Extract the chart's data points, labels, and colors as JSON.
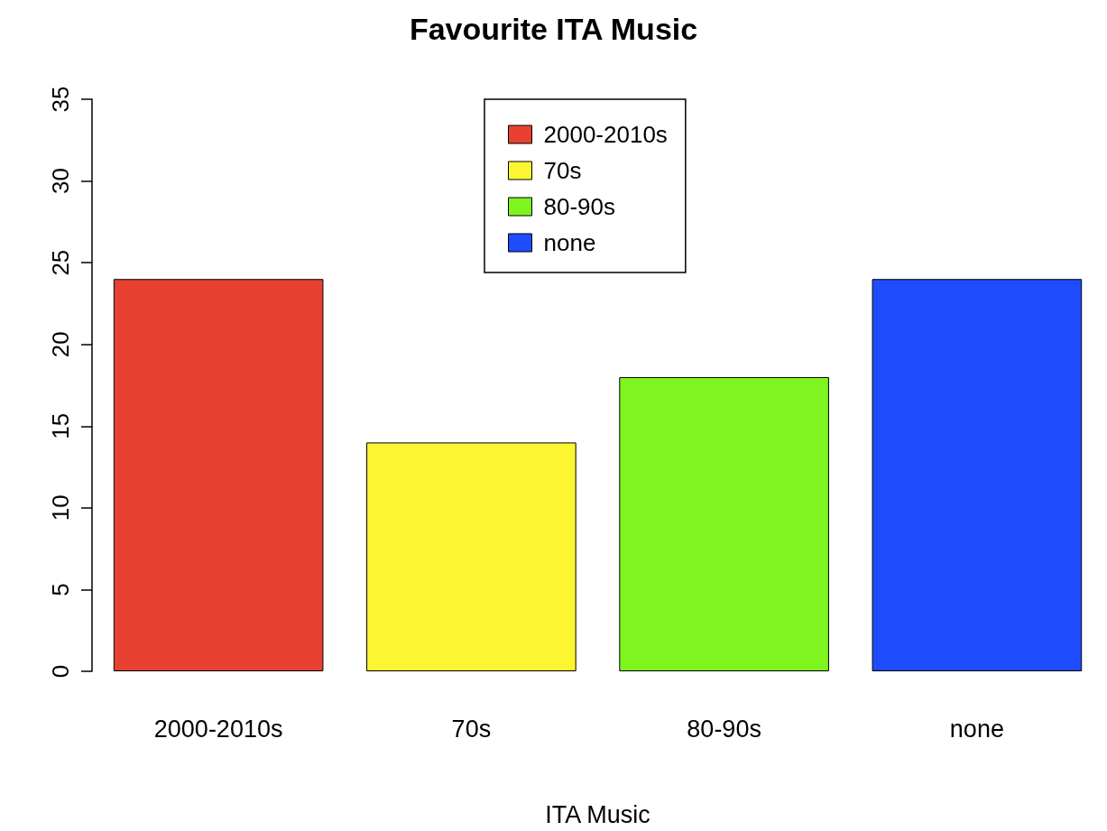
{
  "chart_data": {
    "type": "bar",
    "title": "Favourite ITA Music",
    "xlabel": "ITA Music",
    "categories": [
      "2000-2010s",
      "70s",
      "80-90s",
      "none"
    ],
    "stacked": true,
    "series": [
      {
        "name": "2000-2010s",
        "color": "#e84132",
        "values": [
          24,
          null,
          null,
          null
        ]
      },
      {
        "name": "70s",
        "color": "#fbf631",
        "values": [
          null,
          14,
          null,
          null
        ]
      },
      {
        "name": "80-90s",
        "color": "#7ff41f",
        "values": [
          null,
          null,
          18,
          null
        ]
      },
      {
        "name": "none",
        "color": "#1f4cfd",
        "values": [
          null,
          null,
          null,
          24
        ]
      }
    ],
    "ylim": [
      0,
      35
    ],
    "yticks": [
      0,
      5,
      10,
      15,
      20,
      25,
      30,
      35
    ],
    "grid": false,
    "legend": "top"
  }
}
